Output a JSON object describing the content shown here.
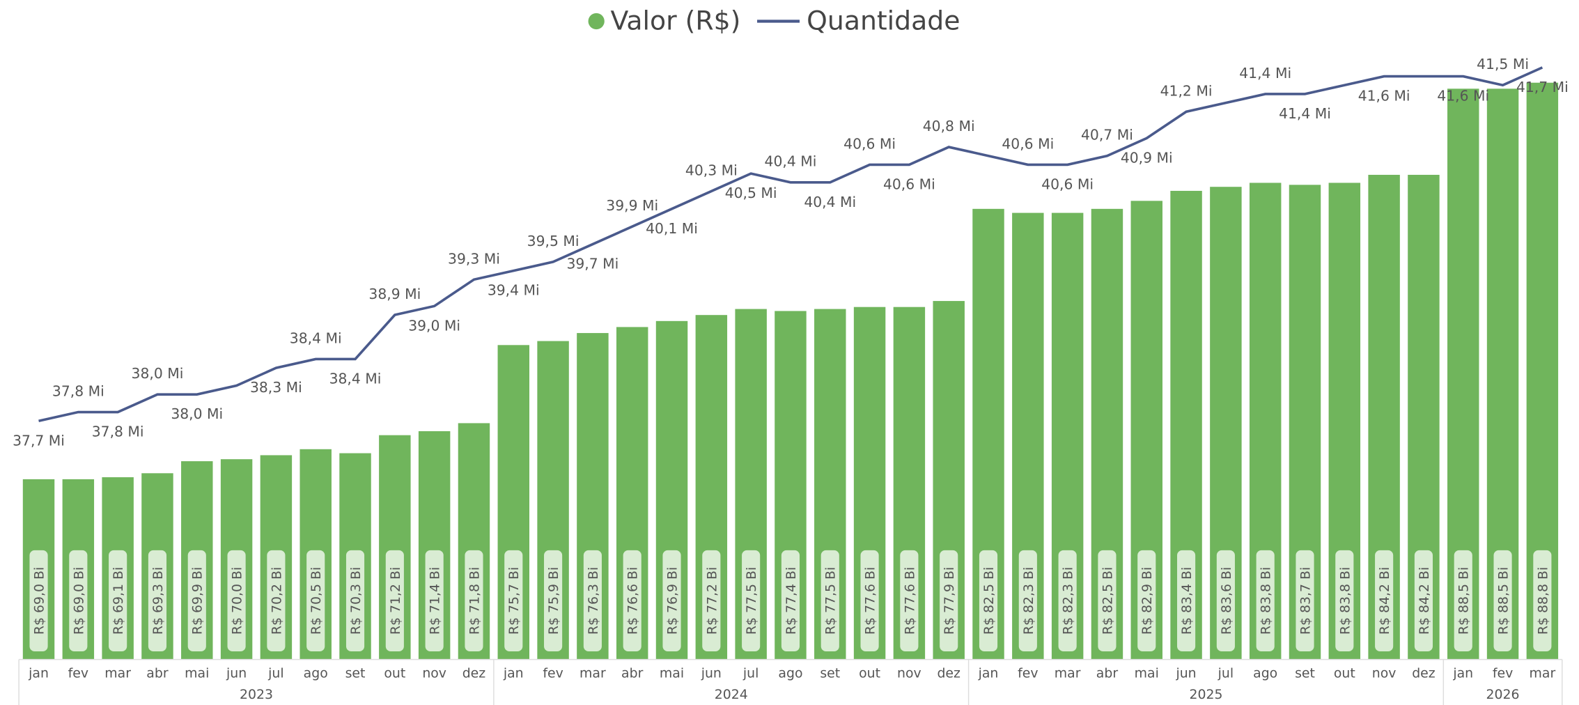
{
  "chart_data": {
    "type": "bar-line",
    "legend": "top",
    "categories": [
      "jan",
      "fev",
      "mar",
      "abr",
      "mai",
      "jun",
      "jul",
      "ago",
      "set",
      "out",
      "nov",
      "dez",
      "jan",
      "fev",
      "mar",
      "abr",
      "mai",
      "jun",
      "jul",
      "ago",
      "set",
      "out",
      "nov",
      "dez",
      "jan",
      "fev",
      "mar",
      "abr",
      "mai",
      "jun",
      "jul",
      "ago",
      "set",
      "out",
      "nov",
      "dez",
      "jan",
      "fev",
      "mar"
    ],
    "groups": [
      "2023",
      "2024",
      "2025",
      "2026"
    ],
    "ylim": [
      60,
      90
    ],
    "y2lim": [
      35,
      41.8
    ],
    "series": [
      {
        "name": "Valor (R$)",
        "type": "bar",
        "color": "#70b55c",
        "values": [
          69.0,
          69.0,
          69.1,
          69.3,
          69.9,
          70.0,
          70.2,
          70.5,
          70.3,
          71.2,
          71.4,
          71.8,
          75.7,
          75.9,
          76.3,
          76.6,
          76.9,
          77.2,
          77.5,
          77.4,
          77.5,
          77.6,
          77.6,
          77.9,
          82.5,
          82.3,
          82.3,
          82.5,
          82.9,
          83.4,
          83.6,
          83.8,
          83.7,
          83.8,
          84.2,
          84.2,
          88.5,
          88.5,
          88.8
        ],
        "value_labels": [
          "R$ 69,0 Bi",
          "R$ 69,0 Bi",
          "R$ 69,1 Bi",
          "R$ 69,3 Bi",
          "R$ 69,9 Bi",
          "R$ 70,0 Bi",
          "R$ 70,2 Bi",
          "R$ 70,5 Bi",
          "R$ 70,3 Bi",
          "R$ 71,2 Bi",
          "R$ 71,4 Bi",
          "R$ 71,8 Bi",
          "R$ 75,7 Bi",
          "R$ 75,9 Bi",
          "R$ 76,3 Bi",
          "R$ 76,6 Bi",
          "R$ 76,9 Bi",
          "R$ 77,2 Bi",
          "R$ 77,5 Bi",
          "R$ 77,4 Bi",
          "R$ 77,5 Bi",
          "R$ 77,6 Bi",
          "R$ 77,6 Bi",
          "R$ 77,9 Bi",
          "R$ 82,5 Bi",
          "R$ 82,3 Bi",
          "R$ 82,3 Bi",
          "R$ 82,5 Bi",
          "R$ 82,9 Bi",
          "R$ 83,4 Bi",
          "R$ 83,6 Bi",
          "R$ 83,8 Bi",
          "R$ 83,7 Bi",
          "R$ 83,8 Bi",
          "R$ 84,2 Bi",
          "R$ 84,2 Bi",
          "R$ 88,5 Bi",
          "R$ 88,5 Bi",
          "R$ 88,8 Bi"
        ]
      },
      {
        "name": "Quantidade",
        "type": "line",
        "axis": "y2",
        "color": "#4a5a8c",
        "values": [
          37.7,
          37.8,
          37.8,
          38.0,
          38.0,
          38.1,
          38.3,
          38.4,
          38.4,
          38.9,
          39.0,
          39.3,
          39.4,
          39.5,
          39.7,
          39.9,
          40.1,
          40.3,
          40.5,
          40.4,
          40.4,
          40.6,
          40.6,
          40.8,
          40.7,
          40.6,
          40.6,
          40.7,
          40.9,
          41.2,
          41.3,
          41.4,
          41.4,
          41.5,
          41.6,
          41.6,
          41.6,
          41.5,
          41.7
        ],
        "value_labels": [
          "37,7 Mi",
          "37,8 Mi",
          "37,8 Mi",
          "38,0 Mi",
          "38,0 Mi",
          null,
          "38,3 Mi",
          "38,4 Mi",
          "38,4 Mi",
          "38,9 Mi",
          "39,0 Mi",
          "39,3 Mi",
          "39,4 Mi",
          "39,5 Mi",
          "39,7 Mi",
          "39,9 Mi",
          "40,1 Mi",
          "40,3 Mi",
          "40,5 Mi",
          "40,4 Mi",
          "40,4 Mi",
          "40,6 Mi",
          "40,6 Mi",
          "40,8 Mi",
          null,
          "40,6 Mi",
          "40,6 Mi",
          "40,7 Mi",
          "40,9 Mi",
          "41,2 Mi",
          null,
          "41,4 Mi",
          "41,4 Mi",
          null,
          "41,6 Mi",
          null,
          "41,6 Mi",
          "41,5 Mi",
          "41,7 Mi"
        ]
      }
    ]
  }
}
